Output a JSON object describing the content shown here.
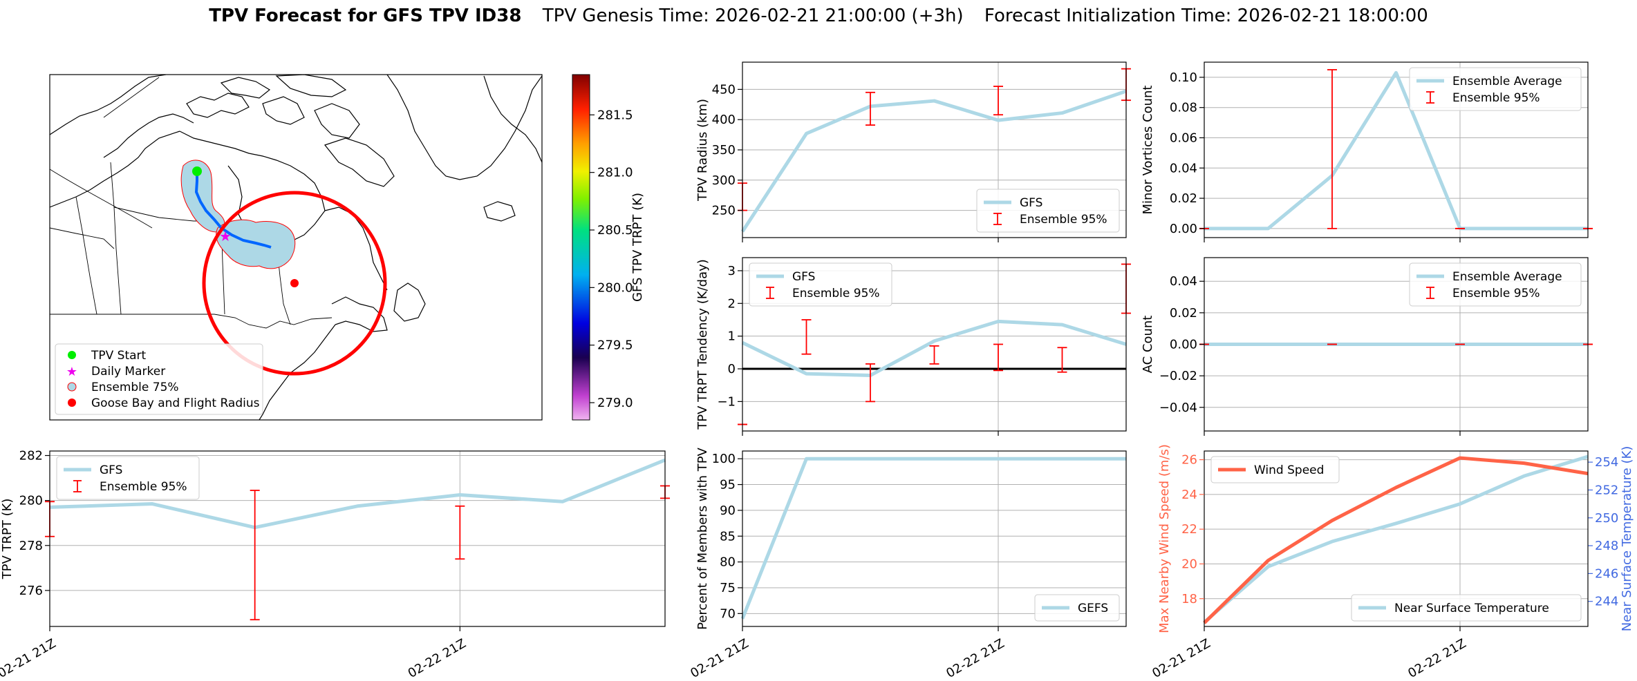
{
  "title": {
    "bold": "TPV Forecast for GFS TPV ID38",
    "genesis": "TPV Genesis Time: 2026-02-21 21:00:00 (+3h)",
    "init": "Forecast Initialization Time: 2026-02-21 18:00:00"
  },
  "colors": {
    "gfs": "#add8e6",
    "error": "#ff0000",
    "wind": "#ff6347",
    "temp_axis": "#4169e1",
    "track": "#0066ff",
    "start": "#00ee00",
    "daily": "#ee00ee",
    "flight": "#ff0000"
  },
  "map": {
    "colorbar": {
      "label": "GFS TPV TRPT (K)",
      "ticks": [
        "279.0",
        "279.5",
        "280.0",
        "280.5",
        "281.0",
        "281.5"
      ]
    },
    "legend": [
      {
        "label": "TPV Start",
        "marker": "dot-green"
      },
      {
        "label": "Daily Marker",
        "marker": "star-magenta"
      },
      {
        "label": "Ensemble 75%",
        "marker": "dot-lightblue"
      },
      {
        "label": "Goose Bay and Flight Radius",
        "marker": "dot-red"
      }
    ]
  },
  "x_tick_labels": [
    "02-21 21Z",
    "02-22 21Z"
  ],
  "chart_data": [
    {
      "id": "trpt",
      "type": "line",
      "ylabel": "TPV TRPT (K)",
      "x": [
        0,
        0.25,
        0.5,
        0.75,
        1.0,
        1.25,
        1.5
      ],
      "y": [
        279.7,
        279.85,
        278.8,
        279.75,
        280.25,
        279.95,
        281.8
      ],
      "ylim": [
        274.4,
        282.2
      ],
      "yticks": [
        276,
        278,
        280,
        282
      ],
      "errorbars": [
        {
          "x": 0.0,
          "lo": 278.4,
          "hi": 279.95
        },
        {
          "x": 0.5,
          "lo": 274.7,
          "hi": 280.45
        },
        {
          "x": 1.0,
          "lo": 277.4,
          "hi": 279.75
        },
        {
          "x": 1.5,
          "lo": 280.1,
          "hi": 280.65
        }
      ],
      "legend": [
        "GFS",
        "Ensemble 95%"
      ],
      "legend_loc": "upper-left"
    },
    {
      "id": "radius",
      "type": "line",
      "ylabel": "TPV Radius (km)",
      "x": [
        0,
        0.25,
        0.5,
        0.75,
        1.0,
        1.25,
        1.5
      ],
      "y": [
        215,
        377,
        422,
        431,
        399,
        411,
        447
      ],
      "ylim": [
        205,
        495
      ],
      "yticks": [
        250,
        300,
        350,
        400,
        450
      ],
      "errorbars": [
        {
          "x": 0.0,
          "lo": 250,
          "hi": 295
        },
        {
          "x": 0.5,
          "lo": 391,
          "hi": 445
        },
        {
          "x": 1.0,
          "lo": 408,
          "hi": 455
        },
        {
          "x": 1.5,
          "lo": 432,
          "hi": 484
        }
      ],
      "legend": [
        "GFS",
        "Ensemble 95%"
      ],
      "legend_loc": "lower-right"
    },
    {
      "id": "minor",
      "type": "line",
      "ylabel": "Minor Vortices Count",
      "x": [
        0,
        0.25,
        0.5,
        0.75,
        1.0,
        1.25,
        1.5
      ],
      "y": [
        0,
        0,
        0.035,
        0.103,
        0,
        0,
        0
      ],
      "ylim": [
        -0.006,
        0.11
      ],
      "yticks": [
        0.0,
        0.02,
        0.04,
        0.06,
        0.08,
        0.1
      ],
      "errorbars": [
        {
          "x": 0.0,
          "lo": 0,
          "hi": 0
        },
        {
          "x": 0.5,
          "lo": 0,
          "hi": 0.105
        },
        {
          "x": 1.0,
          "lo": 0,
          "hi": 0
        },
        {
          "x": 1.5,
          "lo": 0,
          "hi": 0
        }
      ],
      "legend": [
        "Ensemble Average",
        "Ensemble 95%"
      ],
      "legend_loc": "upper-right"
    },
    {
      "id": "tendency",
      "type": "line",
      "ylabel": "TPV TRPT Tendency (K/day)",
      "x": [
        0,
        0.25,
        0.5,
        0.75,
        1.0,
        1.25,
        1.5
      ],
      "y": [
        0.8,
        -0.15,
        -0.2,
        0.85,
        1.45,
        1.35,
        0.75
      ],
      "ylim": [
        -1.9,
        3.4
      ],
      "yticks": [
        -1,
        0,
        1,
        2,
        3
      ],
      "zero_line": true,
      "errorbars": [
        {
          "x": 0.0,
          "lo": -1.7,
          "hi": -1.7
        },
        {
          "x": 0.25,
          "lo": 0.45,
          "hi": 1.5
        },
        {
          "x": 0.5,
          "lo": -1.0,
          "hi": 0.15
        },
        {
          "x": 0.75,
          "lo": 0.15,
          "hi": 0.7
        },
        {
          "x": 1.0,
          "lo": -0.05,
          "hi": 0.75
        },
        {
          "x": 1.25,
          "lo": -0.1,
          "hi": 0.65
        },
        {
          "x": 1.5,
          "lo": 1.7,
          "hi": 3.2
        }
      ],
      "legend": [
        "GFS",
        "Ensemble 95%"
      ],
      "legend_loc": "upper-left"
    },
    {
      "id": "ac",
      "type": "line",
      "ylabel": "AC Count",
      "x": [
        0,
        0.25,
        0.5,
        0.75,
        1.0,
        1.25,
        1.5
      ],
      "y": [
        0,
        0,
        0,
        0,
        0,
        0,
        0
      ],
      "ylim": [
        -0.055,
        0.055
      ],
      "yticks": [
        -0.04,
        -0.02,
        0.0,
        0.02,
        0.04
      ],
      "errorbars": [
        {
          "x": 0.0,
          "lo": 0,
          "hi": 0
        },
        {
          "x": 0.5,
          "lo": 0,
          "hi": 0
        },
        {
          "x": 1.0,
          "lo": 0,
          "hi": 0
        },
        {
          "x": 1.5,
          "lo": 0,
          "hi": 0
        }
      ],
      "legend": [
        "Ensemble Average",
        "Ensemble 95%"
      ],
      "legend_loc": "upper-right"
    },
    {
      "id": "percent",
      "type": "line",
      "ylabel": "Percent of Members with TPV",
      "x": [
        0,
        0.25,
        0.5,
        0.75,
        1.0,
        1.25,
        1.5
      ],
      "y": [
        69,
        100,
        100,
        100,
        100,
        100,
        100
      ],
      "ylim": [
        67.5,
        101.5
      ],
      "yticks": [
        70,
        75,
        80,
        85,
        90,
        95,
        100
      ],
      "legend": [
        "GEFS"
      ],
      "legend_loc": "lower-right"
    },
    {
      "id": "wind",
      "type": "line",
      "ylabel": "Max Nearby Wind Speed (m/s)",
      "ylabel2": "Near Surface Temperature (K)",
      "x": [
        0,
        0.25,
        0.5,
        0.75,
        1.0,
        1.25,
        1.5
      ],
      "y": [
        16.6,
        20.2,
        22.5,
        24.4,
        26.1,
        25.8,
        25.2
      ],
      "ylim": [
        16.4,
        26.5
      ],
      "yticks": [
        18,
        20,
        22,
        24,
        26
      ],
      "y2": [
        242.5,
        246.5,
        248.3,
        249.6,
        251.0,
        253.0,
        254.4
      ],
      "y2lim": [
        242.2,
        254.8
      ],
      "y2ticks": [
        244,
        246,
        248,
        250,
        252,
        254
      ],
      "legend": [
        "Wind Speed"
      ],
      "legend_loc": "upper-left",
      "legend2": [
        "Near Surface Temperature"
      ],
      "legend2_loc": "lower-right"
    }
  ]
}
